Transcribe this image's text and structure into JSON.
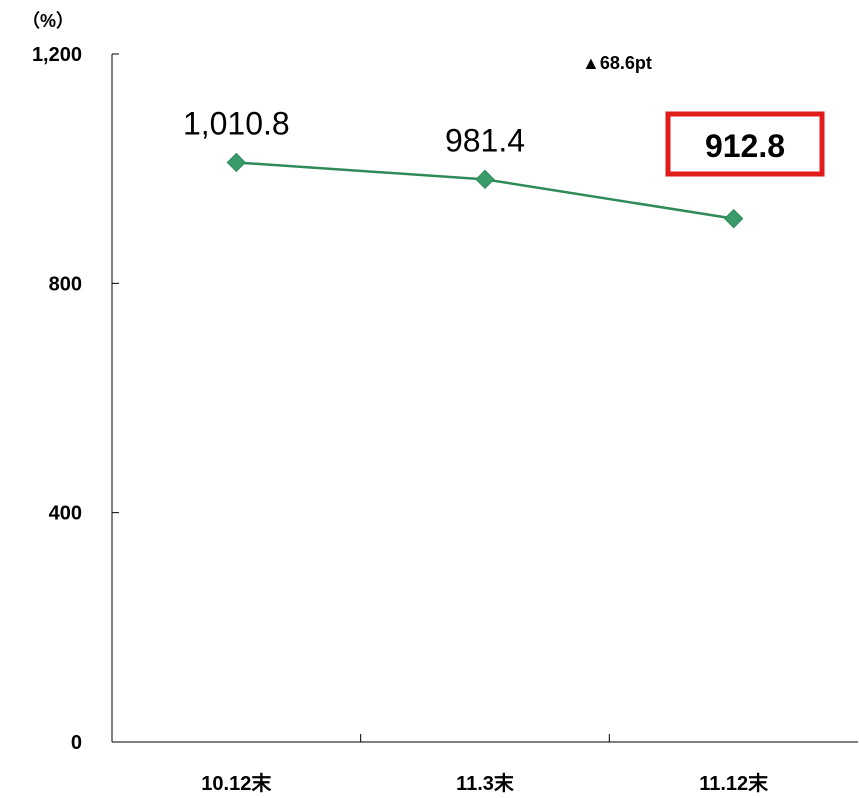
{
  "chart_data": {
    "type": "line",
    "unit": "（%）",
    "categories": [
      "10.12末",
      "11.3末",
      "11.12末"
    ],
    "values": [
      1010.8,
      981.4,
      912.8
    ],
    "value_labels": [
      "1,010.8",
      "981.4",
      "912.8"
    ],
    "highlight_index": 2,
    "change_label": "▲68.6pt",
    "ylim": [
      0,
      1200
    ],
    "yticks": [
      0,
      400,
      800,
      1200
    ],
    "ytick_labels": [
      "0",
      "400",
      "800",
      "1,200"
    ],
    "grid": false,
    "colors": {
      "line": "#2e8b57",
      "marker": "#3a9a6a",
      "highlight_box": "#e21b1b"
    }
  }
}
